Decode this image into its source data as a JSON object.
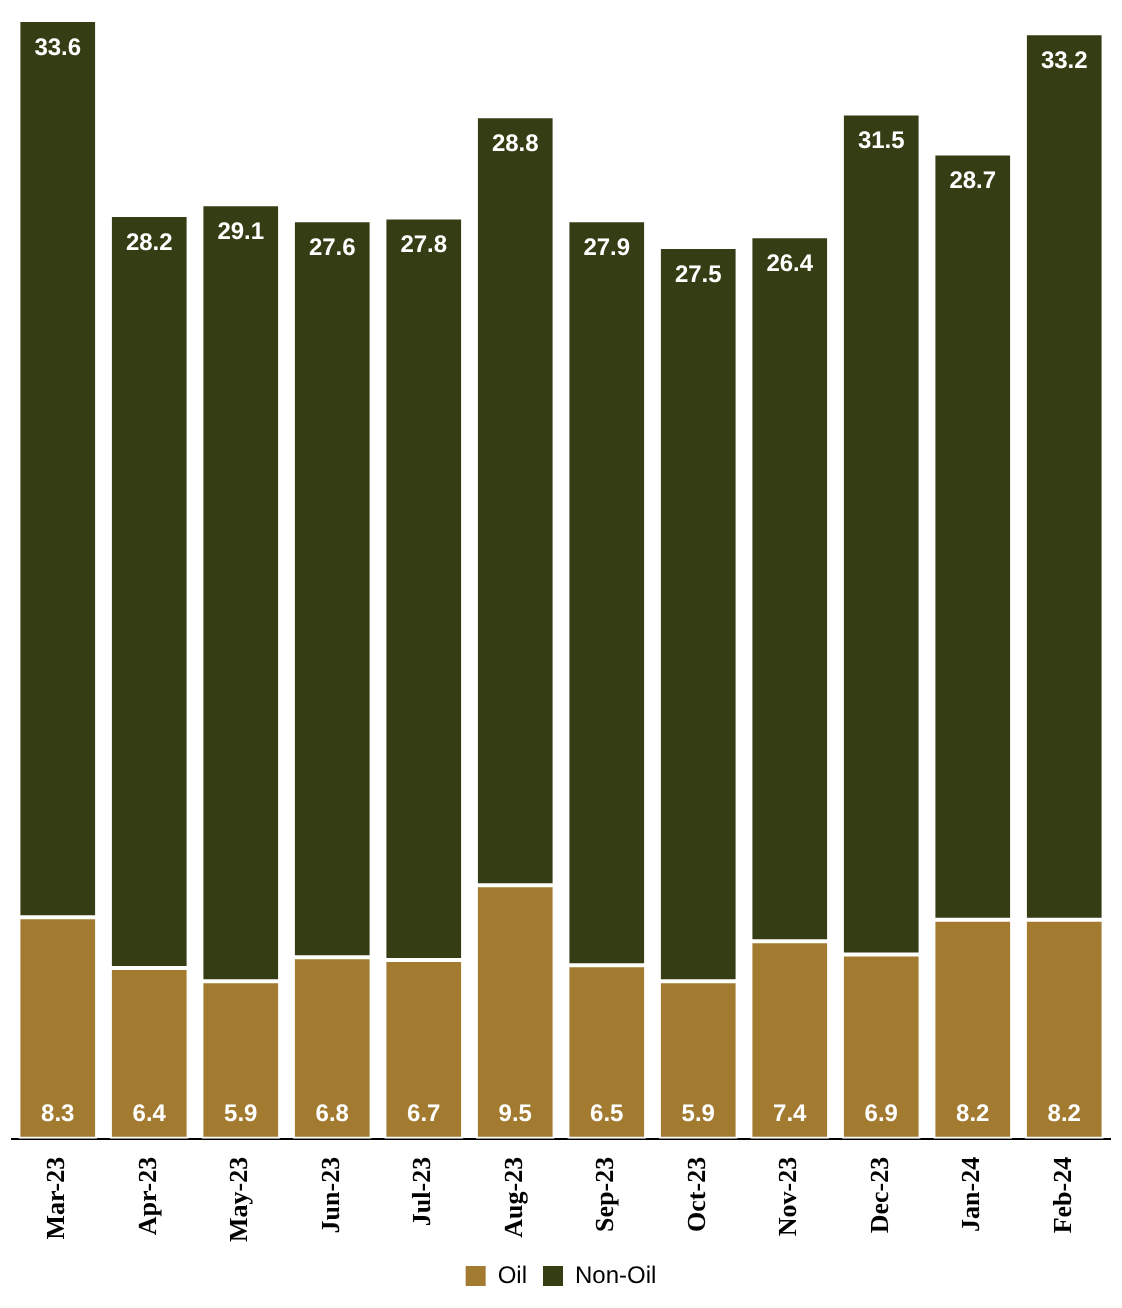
{
  "chart_data": {
    "type": "bar",
    "stacked": true,
    "categories": [
      "Mar-23",
      "Apr-23",
      "May-23",
      "Jun-23",
      "Jul-23",
      "Aug-23",
      "Sep-23",
      "Oct-23",
      "Nov-23",
      "Dec-23",
      "Jan-24",
      "Feb-24"
    ],
    "series": [
      {
        "name": "Oil",
        "color": "#a27b31",
        "values": [
          8.3,
          6.4,
          5.9,
          6.8,
          6.7,
          9.5,
          6.5,
          5.9,
          7.4,
          6.9,
          8.2,
          8.2
        ]
      },
      {
        "name": "Non-Oil",
        "color": "#343d14",
        "values": [
          33.6,
          28.2,
          29.1,
          27.6,
          27.8,
          28.8,
          27.9,
          27.5,
          26.4,
          31.5,
          28.7,
          33.2
        ]
      }
    ],
    "data_labels": true,
    "legend": "bottom",
    "grid": false
  }
}
